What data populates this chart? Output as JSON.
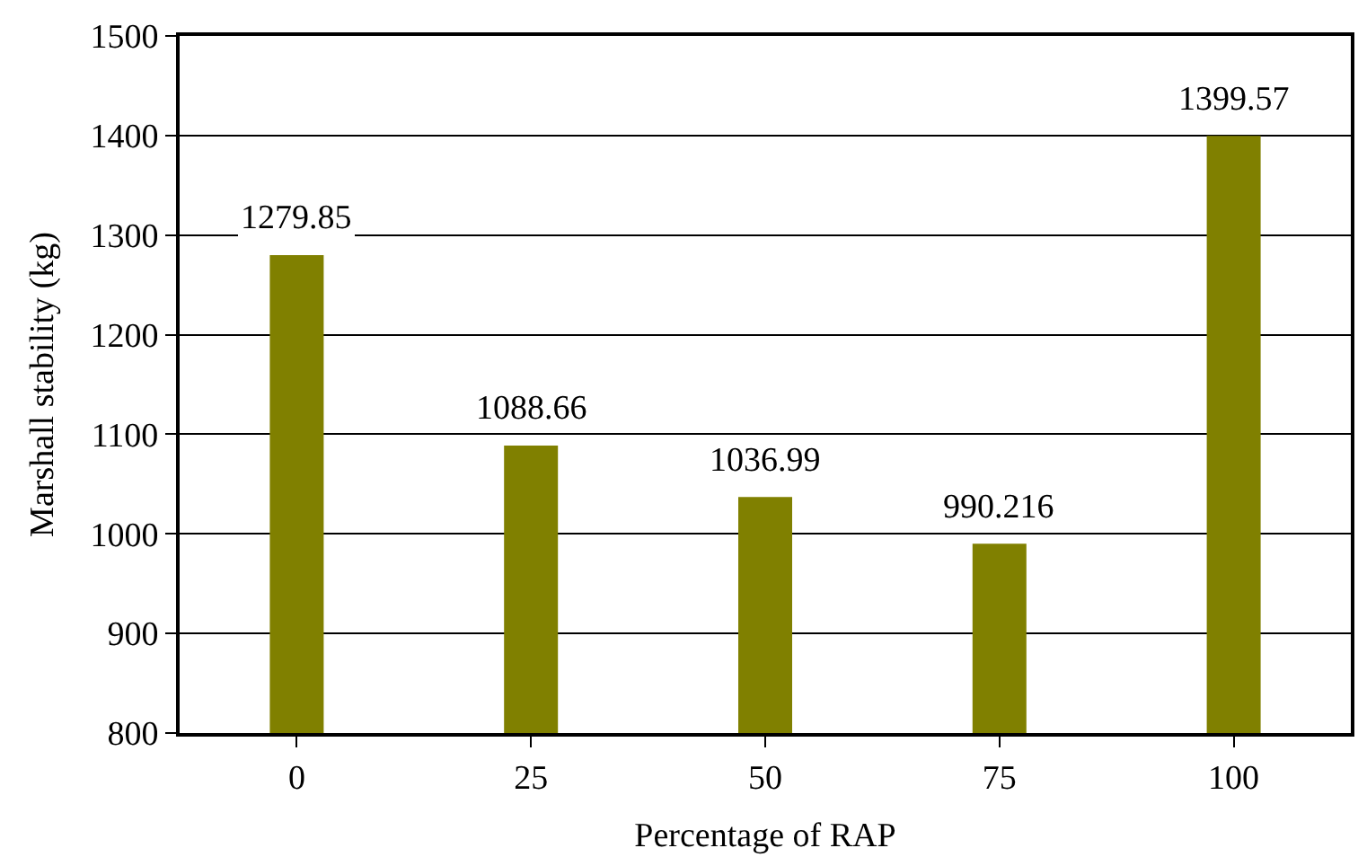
{
  "chart_data": {
    "type": "bar",
    "xlabel": "Percentage of RAP",
    "ylabel": "Marshall stability (kg)",
    "categories": [
      "0",
      "25",
      "50",
      "75",
      "100"
    ],
    "values": [
      1279.85,
      1088.66,
      1036.99,
      990.216,
      1399.57
    ],
    "color": "#808000",
    "data_labels": true,
    "ylim": [
      800,
      1500
    ],
    "yticks": [
      800,
      900,
      1000,
      1100,
      1200,
      1300,
      1400,
      1500
    ],
    "grid": "y"
  }
}
